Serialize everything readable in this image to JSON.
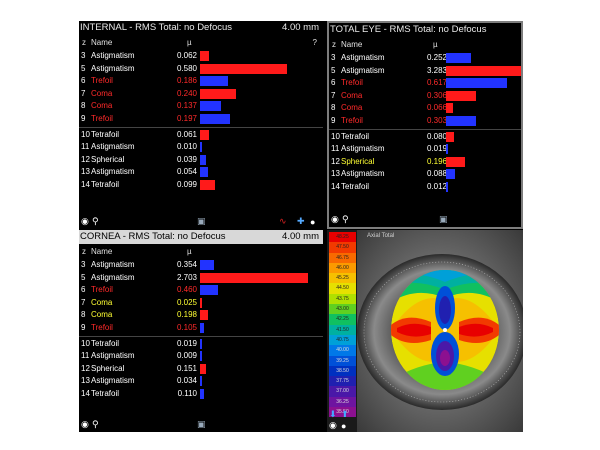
{
  "internal": {
    "title": "INTERNAL  - RMS Total: no Defocus",
    "diameter": "4.00 mm",
    "columns": {
      "z": "z",
      "name": "Name",
      "unit": "µ",
      "extra": "?"
    },
    "rows": [
      {
        "z": "3",
        "name": "Astigmatism",
        "value": "0.062",
        "color": "#ffffff",
        "bar": 0.062,
        "bar_color": "#ff1a1a"
      },
      {
        "z": "5",
        "name": "Astigmatism",
        "value": "0.580",
        "color": "#ffffff",
        "bar": 0.58,
        "bar_color": "#ff1a1a"
      },
      {
        "z": "6",
        "name": "Trefoil",
        "value": "0.186",
        "color": "#ff2a2a",
        "bar": 0.186,
        "bar_color": "#2233ff"
      },
      {
        "z": "7",
        "name": "Coma",
        "value": "0.240",
        "color": "#ff2a2a",
        "bar": 0.24,
        "bar_color": "#ff1a1a"
      },
      {
        "z": "8",
        "name": "Coma",
        "value": "0.137",
        "color": "#ff2a2a",
        "bar": 0.137,
        "bar_color": "#2233ff"
      },
      {
        "z": "9",
        "name": "Trefoil",
        "value": "0.197",
        "color": "#ff2a2a",
        "bar": 0.197,
        "bar_color": "#2233ff"
      },
      {
        "z": "10",
        "name": "Tetrafoil",
        "value": "0.061",
        "color": "#ffffff",
        "bar": 0.061,
        "bar_color": "#ff1a1a"
      },
      {
        "z": "11",
        "name": "Astigmatism",
        "value": "0.010",
        "color": "#ffffff",
        "bar": 0.01,
        "bar_color": "#2233ff"
      },
      {
        "z": "12",
        "name": "Spherical",
        "value": "0.039",
        "color": "#ffffff",
        "bar": 0.039,
        "bar_color": "#2233ff"
      },
      {
        "z": "13",
        "name": "Astigmatism",
        "value": "0.054",
        "color": "#ffffff",
        "bar": 0.054,
        "bar_color": "#2233ff"
      },
      {
        "z": "14",
        "name": "Tetrafoil",
        "value": "0.099",
        "color": "#ffffff",
        "bar": 0.099,
        "bar_color": "#ff1a1a"
      }
    ]
  },
  "total": {
    "title": "TOTAL EYE  - RMS Total: no Defocus",
    "columns": {
      "z": "z",
      "name": "Name",
      "unit": "µ"
    },
    "rows": [
      {
        "z": "3",
        "name": "Astigmatism",
        "value": "0.252",
        "color": "#ffffff",
        "bar": 0.252,
        "bar_color": "#2233ff"
      },
      {
        "z": "5",
        "name": "Astigmatism",
        "value": "3.283",
        "color": "#ffffff",
        "bar": 3.283,
        "bar_color": "#ff1a1a"
      },
      {
        "z": "6",
        "name": "Trefoil",
        "value": "0.617",
        "color": "#ff2a2a",
        "bar": 0.617,
        "bar_color": "#2233ff"
      },
      {
        "z": "7",
        "name": "Coma",
        "value": "0.306",
        "color": "#ff2a2a",
        "bar": 0.306,
        "bar_color": "#ff1a1a"
      },
      {
        "z": "8",
        "name": "Coma",
        "value": "0.066",
        "color": "#ff2a2a",
        "bar": 0.066,
        "bar_color": "#ff1a1a"
      },
      {
        "z": "9",
        "name": "Trefoil",
        "value": "0.303",
        "color": "#ff2a2a",
        "bar": 0.303,
        "bar_color": "#2233ff"
      },
      {
        "z": "10",
        "name": "Tetrafoil",
        "value": "0.080",
        "color": "#ffffff",
        "bar": 0.08,
        "bar_color": "#ff1a1a"
      },
      {
        "z": "11",
        "name": "Astigmatism",
        "value": "0.019",
        "color": "#ffffff",
        "bar": 0.019,
        "bar_color": "#2233ff"
      },
      {
        "z": "12",
        "name": "Spherical",
        "value": "0.196",
        "color": "#ffff33",
        "bar": 0.196,
        "bar_color": "#ff1a1a"
      },
      {
        "z": "13",
        "name": "Astigmatism",
        "value": "0.088",
        "color": "#ffffff",
        "bar": 0.088,
        "bar_color": "#2233ff"
      },
      {
        "z": "14",
        "name": "Tetrafoil",
        "value": "0.012",
        "color": "#ffffff",
        "bar": 0.012,
        "bar_color": "#2233ff"
      }
    ]
  },
  "cornea": {
    "title": "CORNEA  - RMS Total: no Defocus",
    "diameter": "4.00 mm",
    "columns": {
      "z": "z",
      "name": "Name",
      "unit": "µ"
    },
    "rows": [
      {
        "z": "3",
        "name": "Astigmatism",
        "value": "0.354",
        "color": "#ffffff",
        "bar": 0.354,
        "bar_color": "#2233ff"
      },
      {
        "z": "5",
        "name": "Astigmatism",
        "value": "2.703",
        "color": "#ffffff",
        "bar": 2.703,
        "bar_color": "#ff1a1a"
      },
      {
        "z": "6",
        "name": "Trefoil",
        "value": "0.460",
        "color": "#ff2a2a",
        "bar": 0.46,
        "bar_color": "#2233ff"
      },
      {
        "z": "7",
        "name": "Coma",
        "value": "0.025",
        "color": "#ffff33",
        "bar": 0.025,
        "bar_color": "#ff1a1a"
      },
      {
        "z": "8",
        "name": "Coma",
        "value": "0.198",
        "color": "#ffff33",
        "bar": 0.198,
        "bar_color": "#ff1a1a"
      },
      {
        "z": "9",
        "name": "Trefoil",
        "value": "0.105",
        "color": "#ff2a2a",
        "bar": 0.105,
        "bar_color": "#2233ff"
      },
      {
        "z": "10",
        "name": "Tetrafoil",
        "value": "0.019",
        "color": "#ffffff",
        "bar": 0.019,
        "bar_color": "#2233ff"
      },
      {
        "z": "11",
        "name": "Astigmatism",
        "value": "0.009",
        "color": "#ffffff",
        "bar": 0.009,
        "bar_color": "#2233ff"
      },
      {
        "z": "12",
        "name": "Spherical",
        "value": "0.151",
        "color": "#ffffff",
        "bar": 0.151,
        "bar_color": "#ff1a1a"
      },
      {
        "z": "13",
        "name": "Astigmatism",
        "value": "0.034",
        "color": "#ffffff",
        "bar": 0.034,
        "bar_color": "#2233ff"
      },
      {
        "z": "14",
        "name": "Tetrafoil",
        "value": "0.110",
        "color": "#ffffff",
        "bar": 0.11,
        "bar_color": "#2233ff"
      }
    ]
  },
  "map": {
    "title": "Axial Total",
    "scale_labels": [
      "48.25",
      "47.50",
      "46.75",
      "46.00",
      "45.25",
      "44.50",
      "43.75",
      "43.00",
      "42.25",
      "41.50",
      "40.75",
      "40.00",
      "39.25",
      "38.50",
      "37.75",
      "37.00",
      "36.25",
      "35.50"
    ],
    "scale_colors": [
      "#e80000",
      "#f23a00",
      "#f86a00",
      "#fb9a00",
      "#f6c000",
      "#e6e000",
      "#b0e000",
      "#60d020",
      "#10c060",
      "#00b0a0",
      "#00a0d8",
      "#0078e8",
      "#0050d8",
      "#0030c0",
      "#2020b0",
      "#4a18a8",
      "#6e14a0",
      "#8c1090"
    ]
  }
}
